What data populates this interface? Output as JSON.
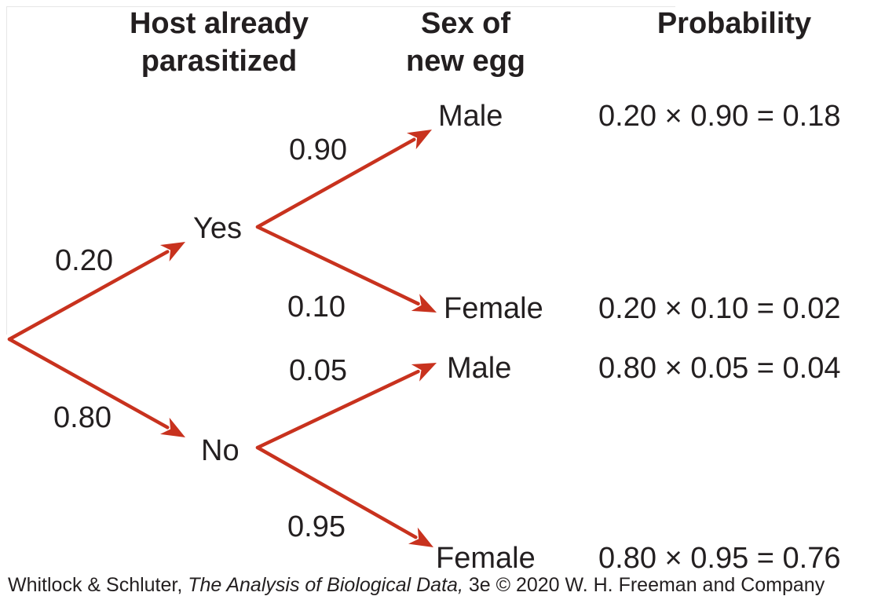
{
  "headers": {
    "host_line1": "Host already",
    "host_line2": "parasitized",
    "sex_line1": "Sex of",
    "sex_line2": "new egg",
    "probability": "Probability"
  },
  "branch_probs": {
    "yes": "0.20",
    "no": "0.80",
    "yes_male": "0.90",
    "yes_female": "0.10",
    "no_male": "0.05",
    "no_female": "0.95"
  },
  "nodes": {
    "yes": "Yes",
    "no": "No",
    "male_1": "Male",
    "female_1": "Female",
    "male_2": "Male",
    "female_2": "Female"
  },
  "products": {
    "yes_male": "0.20 × 0.90 = 0.18",
    "yes_female": "0.20 × 0.10 = 0.02",
    "no_male": "0.80 × 0.05 = 0.04",
    "no_female": "0.80 × 0.95 = 0.76"
  },
  "credit": {
    "authors": "Whitlock & Schluter, ",
    "book": "The Analysis of Biological Data,",
    "rest": " 3e © 2020 W. H. Freeman and Company"
  },
  "colors": {
    "arrow": "#c8321e",
    "text": "#231f20"
  }
}
